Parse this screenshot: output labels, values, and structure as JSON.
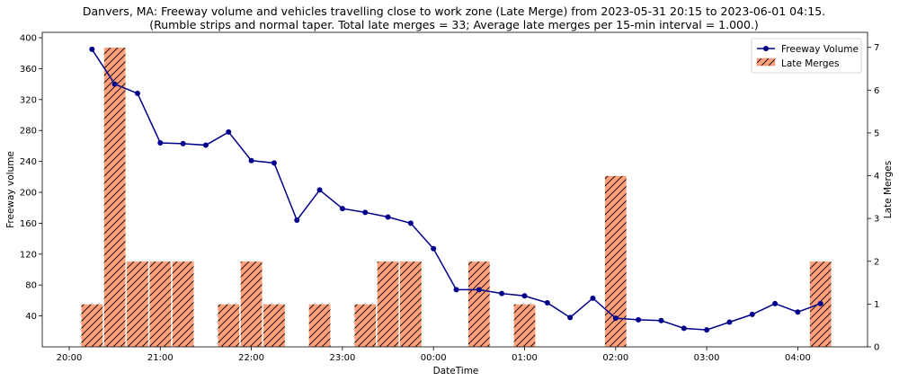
{
  "chart_data": {
    "type": "bar+line",
    "title": "Danvers, MA: Freeway volume and vehicles travelling close to work zone (Late Merge) from 2023-05-31 20:15 to 2023-06-01 04:15.",
    "subtitle": "(Rumble strips and normal taper. Total late merges = 33; Average late merges per 15-min interval = 1.000.)",
    "xlabel": "DateTime",
    "ylabel_left": "Freeway volume",
    "ylabel_right": "Late Merges",
    "x_ticks": [
      "20:00",
      "21:00",
      "22:00",
      "23:00",
      "00:00",
      "01:00",
      "02:00",
      "03:00",
      "04:00"
    ],
    "y_left_ticks": [
      "40",
      "80",
      "120",
      "160",
      "200",
      "240",
      "280",
      "320",
      "360",
      "400"
    ],
    "y_right_ticks": [
      "0",
      "1",
      "2",
      "3",
      "4",
      "5",
      "6",
      "7"
    ],
    "ylim_left": [
      0,
      407
    ],
    "ylim_right": [
      0,
      7.35
    ],
    "grid": false,
    "legend_position": "top-right",
    "colors": {
      "line": "#00008b",
      "bar_fill": "#ffa07a",
      "hatch": "#000000"
    },
    "x": [
      "20:15",
      "20:30",
      "20:45",
      "21:00",
      "21:15",
      "21:30",
      "21:45",
      "22:00",
      "22:15",
      "22:30",
      "22:45",
      "23:00",
      "23:15",
      "23:30",
      "23:45",
      "00:00",
      "00:15",
      "00:30",
      "00:45",
      "01:00",
      "01:15",
      "01:30",
      "01:45",
      "02:00",
      "02:15",
      "02:30",
      "02:45",
      "03:00",
      "03:15",
      "03:30",
      "03:45",
      "04:00",
      "04:15"
    ],
    "series": [
      {
        "name": "Freeway Volume",
        "axis": "left",
        "style": "line",
        "values": [
          385,
          340,
          328,
          264,
          263,
          261,
          278,
          241,
          238,
          164,
          203,
          179,
          174,
          168,
          160,
          127,
          74,
          74,
          69,
          66,
          57,
          38,
          63,
          37,
          35,
          34,
          24,
          22,
          32,
          42,
          56,
          45,
          56
        ]
      },
      {
        "name": "Late Merges",
        "axis": "right",
        "style": "bar",
        "values": [
          1,
          7,
          2,
          2,
          2,
          0,
          1,
          2,
          1,
          0,
          1,
          0,
          1,
          2,
          2,
          0,
          0,
          2,
          0,
          1,
          0,
          0,
          0,
          4,
          0,
          0,
          0,
          0,
          0,
          0,
          0,
          0,
          2
        ]
      }
    ]
  }
}
